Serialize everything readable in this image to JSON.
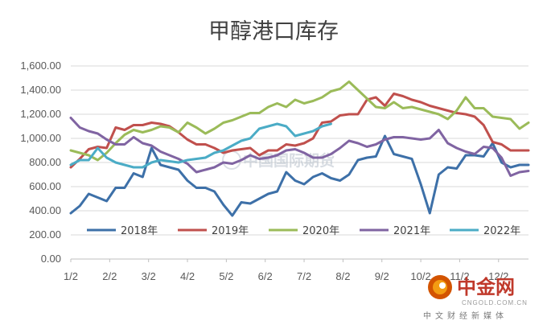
{
  "chart_data": {
    "type": "line",
    "title": "甲醇港口库存",
    "xlabel": "",
    "ylabel": "",
    "ylim": [
      0,
      1600
    ],
    "y_ticks": [
      "0.00",
      "200.00",
      "400.00",
      "600.00",
      "800.00",
      "1,000.00",
      "1,200.00",
      "1,400.00",
      "1,600.00"
    ],
    "x_tick_labels": [
      "1/2",
      "2/2",
      "3/2",
      "4/2",
      "5/2",
      "6/2",
      "7/2",
      "8/2",
      "9/2",
      "10/2",
      "11/2",
      "12/2"
    ],
    "x_count": 52,
    "grid": true,
    "legend_position": "bottom-inside",
    "series": [
      {
        "name": "2018年",
        "color": "#3d70a8",
        "values": [
          380,
          440,
          540,
          510,
          480,
          590,
          590,
          710,
          680,
          920,
          780,
          760,
          740,
          650,
          590,
          590,
          560,
          450,
          360,
          470,
          460,
          500,
          540,
          560,
          720,
          650,
          620,
          680,
          710,
          670,
          650,
          700,
          820,
          840,
          850,
          1020,
          870,
          850,
          830,
          620,
          380,
          700,
          760,
          750,
          860,
          860,
          850,
          960,
          800,
          760,
          780,
          780
        ]
      },
      {
        "name": "2019年",
        "color": "#c0504d",
        "values": [
          760,
          830,
          910,
          930,
          920,
          1090,
          1070,
          1110,
          1110,
          1130,
          1120,
          1100,
          1050,
          990,
          950,
          950,
          920,
          880,
          900,
          910,
          920,
          860,
          900,
          900,
          950,
          940,
          960,
          1000,
          1130,
          1140,
          1190,
          1200,
          1200,
          1320,
          1340,
          1270,
          1370,
          1350,
          1320,
          1300,
          1270,
          1250,
          1230,
          1210,
          1200,
          1180,
          1110,
          970,
          950,
          900,
          900,
          900
        ]
      },
      {
        "name": "2020年",
        "color": "#9bbb59",
        "values": [
          900,
          880,
          860,
          820,
          880,
          960,
          1030,
          1070,
          1050,
          1070,
          1100,
          1090,
          1050,
          1130,
          1090,
          1040,
          1080,
          1130,
          1150,
          1180,
          1210,
          1210,
          1260,
          1290,
          1260,
          1320,
          1290,
          1310,
          1340,
          1390,
          1410,
          1470,
          1400,
          1330,
          1260,
          1250,
          1300,
          1250,
          1260,
          1240,
          1220,
          1200,
          1160,
          1230,
          1340,
          1250,
          1250,
          1180,
          1170,
          1160,
          1080,
          1130
        ]
      },
      {
        "name": "2021年",
        "color": "#8064a2",
        "values": [
          1170,
          1090,
          1060,
          1040,
          990,
          950,
          950,
          1010,
          960,
          940,
          890,
          860,
          830,
          790,
          720,
          740,
          760,
          800,
          790,
          820,
          860,
          830,
          840,
          860,
          900,
          910,
          880,
          840,
          840,
          870,
          920,
          980,
          960,
          930,
          950,
          990,
          1010,
          1010,
          1000,
          990,
          1000,
          1070,
          960,
          920,
          890,
          870,
          930,
          920,
          840,
          690,
          720,
          730
        ]
      },
      {
        "name": "2022年",
        "color": "#4bacc6",
        "values": [
          780,
          820,
          820,
          920,
          840,
          800,
          780,
          760,
          760,
          800,
          820,
          810,
          800,
          820,
          830,
          840,
          880,
          900,
          940,
          980,
          1000,
          1080,
          1100,
          1120,
          1100,
          1020,
          1040,
          1060,
          1100,
          1120
        ]
      }
    ]
  },
  "logo": {
    "main": "中金网",
    "sub": "CNGOLD.COM.CN",
    "cn": "中文财经新媒体"
  },
  "watermark": {
    "text": "中国国际期货"
  }
}
